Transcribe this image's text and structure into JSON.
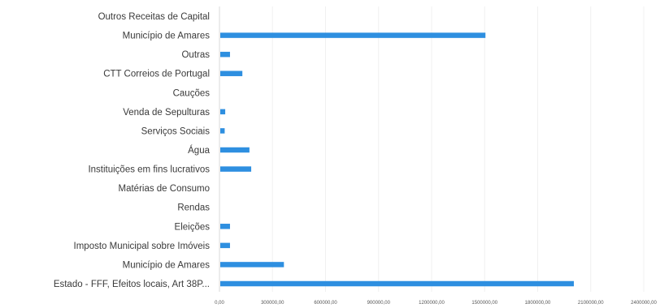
{
  "colors": {
    "bar": "#2E8FE0",
    "axis": "#d9d9d9",
    "text": "#3a3a3a"
  },
  "chart_data": {
    "type": "bar",
    "orientation": "horizontal",
    "title": "",
    "xlabel": "",
    "ylabel": "",
    "categories": [
      "Outros Receitas de Capital",
      "Município de Amares",
      "Outras",
      "CTT Correios de Portugal",
      "Cauções",
      "Venda de Sepulturas",
      "Serviços Sociais",
      "Água",
      "Instituições em fins lucrativos",
      "Matérias de Consumo",
      "Rendas",
      "Eleições",
      "Imposto Municipal sobre Imóveis",
      "Município de Amares",
      "Estado - FFF, Efeitos locais, Art 38P..."
    ],
    "values": [
      0,
      1500000,
      55000,
      125000,
      0,
      28000,
      25000,
      165000,
      175000,
      0,
      0,
      55000,
      55000,
      360000,
      2000000
    ],
    "xlim": [
      0,
      2400000
    ],
    "x_ticks": [
      0,
      300000,
      600000,
      900000,
      1200000,
      1500000,
      1800000,
      2100000,
      2400000
    ],
    "x_tick_labels": [
      "0,00",
      "300000,00",
      "600000,00",
      "900000,00",
      "1200000,00",
      "1500000,00",
      "1800000,00",
      "2100000,00",
      "2400000,00"
    ],
    "grid": true,
    "legend": "none"
  }
}
